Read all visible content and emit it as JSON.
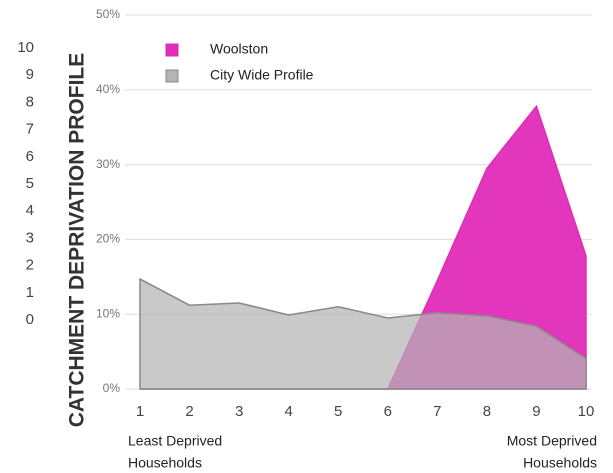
{
  "chart_data": {
    "type": "area",
    "title": "CATCHMENT DEPRIVATION PROFILE",
    "side_scale": [
      "10",
      "9",
      "8",
      "7",
      "6",
      "5",
      "4",
      "3",
      "2",
      "1",
      "0"
    ],
    "categories": [
      "1",
      "2",
      "3",
      "4",
      "5",
      "6",
      "7",
      "8",
      "9",
      "10"
    ],
    "series": [
      {
        "name": "Woolston",
        "color": "#e02cb8",
        "values": [
          0,
          0,
          0,
          0,
          0,
          0,
          14.5,
          29.5,
          37.8,
          17.8
        ]
      },
      {
        "name": "City Wide Profile",
        "color": "#b4b4b4",
        "values": [
          14.7,
          11.2,
          11.5,
          9.9,
          11.0,
          9.5,
          10.2,
          9.8,
          8.4,
          4.1
        ]
      }
    ],
    "ylim": [
      0,
      50
    ],
    "yticks": [
      {
        "value": 0,
        "label": "0%"
      },
      {
        "value": 10,
        "label": "10%"
      },
      {
        "value": 20,
        "label": "20%"
      },
      {
        "value": 30,
        "label": "30%"
      },
      {
        "value": 40,
        "label": "40%"
      },
      {
        "value": 50,
        "label": "50%"
      }
    ],
    "grid": true,
    "legend": "top-left",
    "annotations": [
      {
        "lines": [
          "Least Deprived",
          "Households"
        ]
      },
      {
        "lines": [
          "Most Deprived",
          "Households"
        ]
      }
    ]
  }
}
